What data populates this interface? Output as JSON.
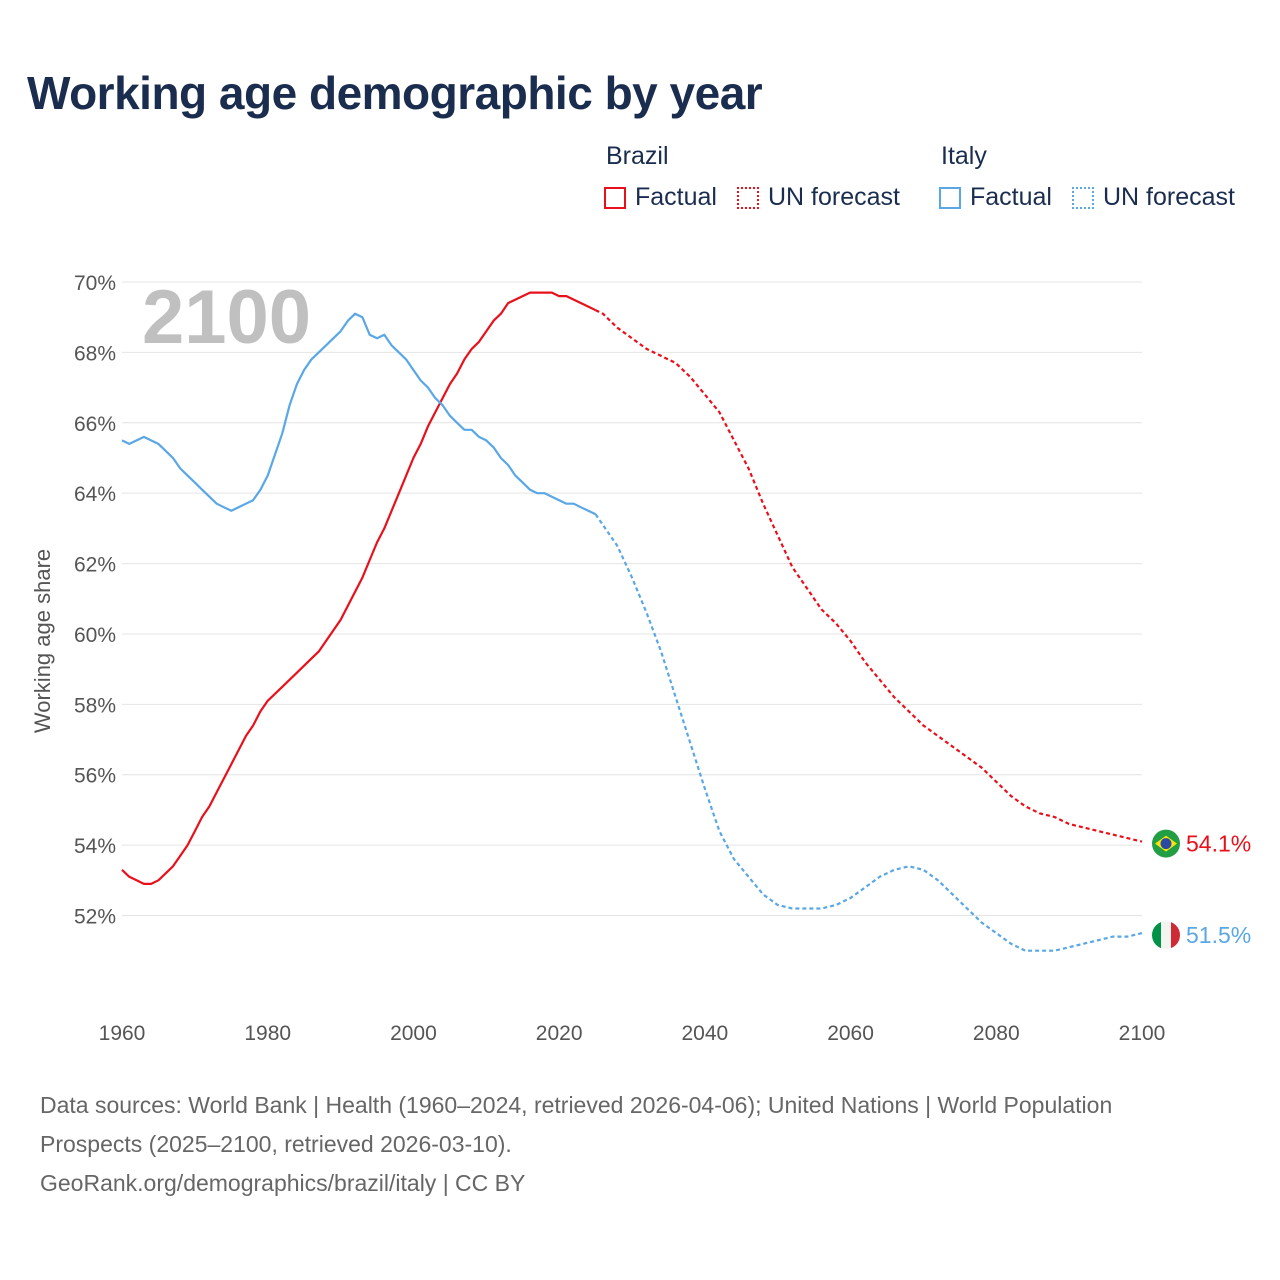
{
  "title": "Working age demographic by year",
  "legend": {
    "groups": [
      {
        "name": "Brazil",
        "color": "#e8111b",
        "items": [
          {
            "label": "Factual",
            "style": "solid"
          },
          {
            "label": "UN forecast",
            "style": "dotted"
          }
        ]
      },
      {
        "name": "Italy",
        "color": "#5aa7e6",
        "items": [
          {
            "label": "Factual",
            "style": "solid"
          },
          {
            "label": "UN forecast",
            "style": "dotted"
          }
        ]
      }
    ]
  },
  "footer": {
    "line1": "Data sources: World Bank | Health (1960–2024, retrieved 2026-04-06); United Nations | World Population Prospects (2025–2100, retrieved 2026-03-10).",
    "line2": "GeoRank.org/demographics/brazil/italy | CC BY"
  },
  "chart_data": {
    "type": "line",
    "title": "Working age demographic by year",
    "ylabel": "Working age share",
    "xlabel": "",
    "current_year_label": "2100",
    "xlim": [
      1960,
      2100
    ],
    "ylim": [
      49.6,
      70
    ],
    "x_ticks": [
      1960,
      1980,
      2000,
      2020,
      2040,
      2060,
      2080,
      2100
    ],
    "y_ticks": [
      52,
      54,
      56,
      58,
      60,
      62,
      64,
      66,
      68,
      70
    ],
    "y_tick_labels": [
      "52%",
      "54%",
      "56%",
      "58%",
      "60%",
      "62%",
      "64%",
      "66%",
      "68%",
      "70%"
    ],
    "grid": true,
    "forecast_start": 2025,
    "series": [
      {
        "name": "Brazil",
        "color": "#e8111b",
        "flag": "brazil-flag",
        "end_label": "54.1%",
        "points": [
          [
            1960,
            53.3
          ],
          [
            1961,
            53.1
          ],
          [
            1962,
            53.0
          ],
          [
            1963,
            52.9
          ],
          [
            1964,
            52.9
          ],
          [
            1965,
            53.0
          ],
          [
            1966,
            53.2
          ],
          [
            1967,
            53.4
          ],
          [
            1968,
            53.7
          ],
          [
            1969,
            54.0
          ],
          [
            1970,
            54.4
          ],
          [
            1971,
            54.8
          ],
          [
            1972,
            55.1
          ],
          [
            1973,
            55.5
          ],
          [
            1974,
            55.9
          ],
          [
            1975,
            56.3
          ],
          [
            1976,
            56.7
          ],
          [
            1977,
            57.1
          ],
          [
            1978,
            57.4
          ],
          [
            1979,
            57.8
          ],
          [
            1980,
            58.1
          ],
          [
            1982,
            58.5
          ],
          [
            1984,
            58.9
          ],
          [
            1986,
            59.3
          ],
          [
            1987,
            59.5
          ],
          [
            1988,
            59.8
          ],
          [
            1990,
            60.4
          ],
          [
            1992,
            61.2
          ],
          [
            1993,
            61.6
          ],
          [
            1994,
            62.1
          ],
          [
            1995,
            62.6
          ],
          [
            1996,
            63.0
          ],
          [
            1998,
            64.0
          ],
          [
            2000,
            65.0
          ],
          [
            2001,
            65.4
          ],
          [
            2002,
            65.9
          ],
          [
            2004,
            66.7
          ],
          [
            2005,
            67.1
          ],
          [
            2006,
            67.4
          ],
          [
            2007,
            67.8
          ],
          [
            2008,
            68.1
          ],
          [
            2009,
            68.3
          ],
          [
            2010,
            68.6
          ],
          [
            2011,
            68.9
          ],
          [
            2012,
            69.1
          ],
          [
            2013,
            69.4
          ],
          [
            2014,
            69.5
          ],
          [
            2015,
            69.6
          ],
          [
            2016,
            69.7
          ],
          [
            2017,
            69.7
          ],
          [
            2018,
            69.7
          ],
          [
            2019,
            69.7
          ],
          [
            2020,
            69.6
          ],
          [
            2021,
            69.6
          ],
          [
            2022,
            69.5
          ],
          [
            2023,
            69.4
          ],
          [
            2024,
            69.3
          ],
          [
            2025,
            69.2
          ],
          [
            2026,
            69.1
          ],
          [
            2028,
            68.7
          ],
          [
            2030,
            68.4
          ],
          [
            2032,
            68.1
          ],
          [
            2034,
            67.9
          ],
          [
            2036,
            67.7
          ],
          [
            2038,
            67.3
          ],
          [
            2040,
            66.8
          ],
          [
            2042,
            66.3
          ],
          [
            2044,
            65.5
          ],
          [
            2046,
            64.7
          ],
          [
            2048,
            63.7
          ],
          [
            2050,
            62.8
          ],
          [
            2052,
            61.9
          ],
          [
            2054,
            61.3
          ],
          [
            2056,
            60.7
          ],
          [
            2058,
            60.3
          ],
          [
            2060,
            59.8
          ],
          [
            2062,
            59.2
          ],
          [
            2064,
            58.7
          ],
          [
            2066,
            58.2
          ],
          [
            2068,
            57.8
          ],
          [
            2070,
            57.4
          ],
          [
            2072,
            57.1
          ],
          [
            2074,
            56.8
          ],
          [
            2076,
            56.5
          ],
          [
            2078,
            56.2
          ],
          [
            2080,
            55.8
          ],
          [
            2082,
            55.4
          ],
          [
            2084,
            55.1
          ],
          [
            2086,
            54.9
          ],
          [
            2088,
            54.8
          ],
          [
            2090,
            54.6
          ],
          [
            2092,
            54.5
          ],
          [
            2094,
            54.4
          ],
          [
            2096,
            54.3
          ],
          [
            2098,
            54.2
          ],
          [
            2100,
            54.1
          ]
        ]
      },
      {
        "name": "Italy",
        "color": "#5aa7e6",
        "flag": "italy-flag",
        "end_label": "51.5%",
        "points": [
          [
            1960,
            65.5
          ],
          [
            1961,
            65.4
          ],
          [
            1962,
            65.5
          ],
          [
            1963,
            65.6
          ],
          [
            1964,
            65.5
          ],
          [
            1965,
            65.4
          ],
          [
            1966,
            65.2
          ],
          [
            1967,
            65.0
          ],
          [
            1968,
            64.7
          ],
          [
            1969,
            64.5
          ],
          [
            1970,
            64.3
          ],
          [
            1971,
            64.1
          ],
          [
            1972,
            63.9
          ],
          [
            1973,
            63.7
          ],
          [
            1974,
            63.6
          ],
          [
            1975,
            63.5
          ],
          [
            1976,
            63.6
          ],
          [
            1977,
            63.7
          ],
          [
            1978,
            63.8
          ],
          [
            1979,
            64.1
          ],
          [
            1980,
            64.5
          ],
          [
            1981,
            65.1
          ],
          [
            1982,
            65.7
          ],
          [
            1983,
            66.5
          ],
          [
            1984,
            67.1
          ],
          [
            1985,
            67.5
          ],
          [
            1986,
            67.8
          ],
          [
            1987,
            68.0
          ],
          [
            1988,
            68.2
          ],
          [
            1989,
            68.4
          ],
          [
            1990,
            68.6
          ],
          [
            1991,
            68.9
          ],
          [
            1992,
            69.1
          ],
          [
            1993,
            69.0
          ],
          [
            1994,
            68.5
          ],
          [
            1995,
            68.4
          ],
          [
            1996,
            68.5
          ],
          [
            1997,
            68.2
          ],
          [
            1998,
            68.0
          ],
          [
            1999,
            67.8
          ],
          [
            2000,
            67.5
          ],
          [
            2001,
            67.2
          ],
          [
            2002,
            67.0
          ],
          [
            2003,
            66.7
          ],
          [
            2004,
            66.5
          ],
          [
            2005,
            66.2
          ],
          [
            2006,
            66.0
          ],
          [
            2007,
            65.8
          ],
          [
            2008,
            65.8
          ],
          [
            2009,
            65.6
          ],
          [
            2010,
            65.5
          ],
          [
            2011,
            65.3
          ],
          [
            2012,
            65.0
          ],
          [
            2013,
            64.8
          ],
          [
            2014,
            64.5
          ],
          [
            2015,
            64.3
          ],
          [
            2016,
            64.1
          ],
          [
            2017,
            64.0
          ],
          [
            2018,
            64.0
          ],
          [
            2019,
            63.9
          ],
          [
            2020,
            63.8
          ],
          [
            2021,
            63.7
          ],
          [
            2022,
            63.7
          ],
          [
            2023,
            63.6
          ],
          [
            2024,
            63.5
          ],
          [
            2025,
            63.4
          ],
          [
            2026,
            63.1
          ],
          [
            2028,
            62.5
          ],
          [
            2030,
            61.6
          ],
          [
            2032,
            60.6
          ],
          [
            2034,
            59.5
          ],
          [
            2036,
            58.2
          ],
          [
            2038,
            56.9
          ],
          [
            2040,
            55.6
          ],
          [
            2042,
            54.4
          ],
          [
            2044,
            53.6
          ],
          [
            2046,
            53.1
          ],
          [
            2048,
            52.6
          ],
          [
            2050,
            52.3
          ],
          [
            2052,
            52.2
          ],
          [
            2054,
            52.2
          ],
          [
            2056,
            52.2
          ],
          [
            2058,
            52.3
          ],
          [
            2060,
            52.5
          ],
          [
            2062,
            52.8
          ],
          [
            2064,
            53.1
          ],
          [
            2066,
            53.3
          ],
          [
            2068,
            53.4
          ],
          [
            2070,
            53.3
          ],
          [
            2072,
            53.0
          ],
          [
            2074,
            52.6
          ],
          [
            2076,
            52.2
          ],
          [
            2078,
            51.8
          ],
          [
            2080,
            51.5
          ],
          [
            2082,
            51.2
          ],
          [
            2084,
            51.0
          ],
          [
            2086,
            51.0
          ],
          [
            2088,
            51.0
          ],
          [
            2090,
            51.1
          ],
          [
            2092,
            51.2
          ],
          [
            2094,
            51.3
          ],
          [
            2096,
            51.4
          ],
          [
            2098,
            51.4
          ],
          [
            2100,
            51.5
          ]
        ]
      }
    ]
  }
}
